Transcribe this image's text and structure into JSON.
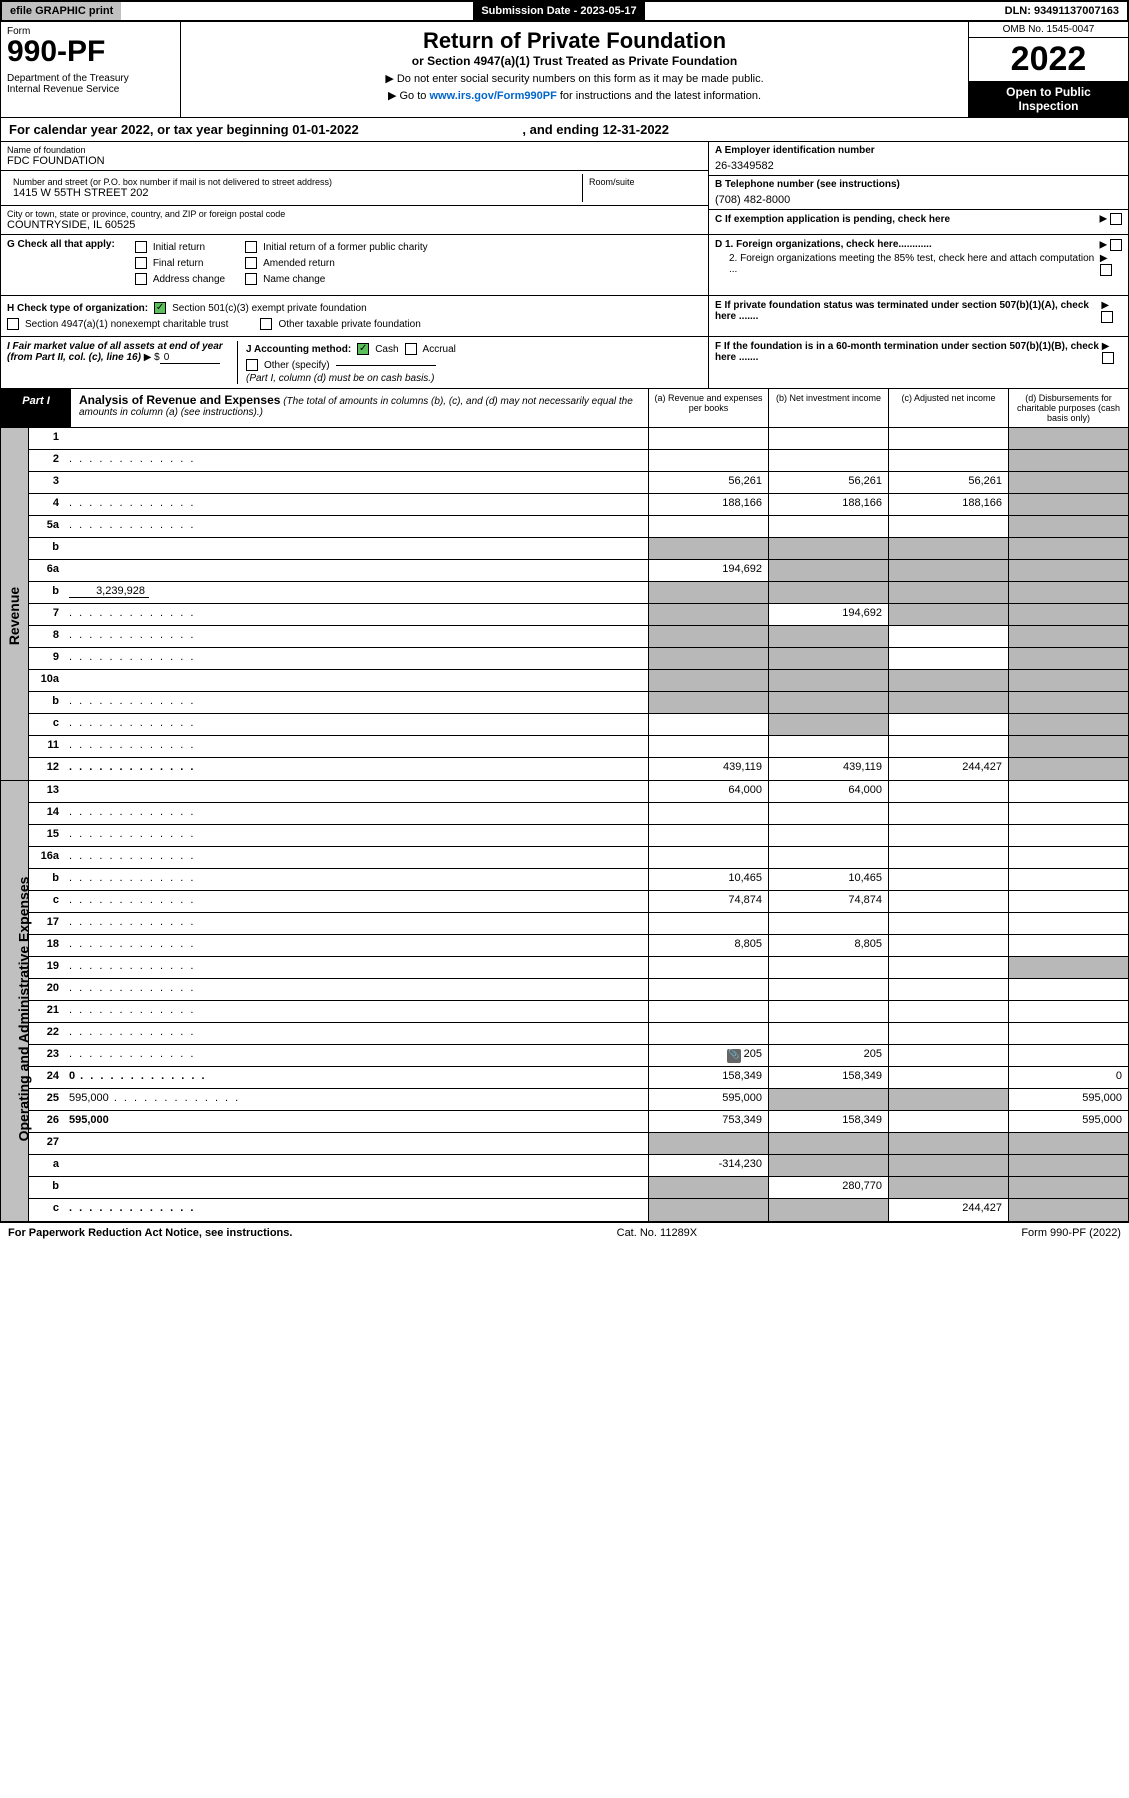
{
  "topbar": {
    "efile": "efile GRAPHIC print",
    "submission": "Submission Date - 2023-05-17",
    "dln": "DLN: 93491137007163"
  },
  "header": {
    "form_label": "Form",
    "form_no": "990-PF",
    "dept": "Department of the Treasury\nInternal Revenue Service",
    "title": "Return of Private Foundation",
    "subtitle": "or Section 4947(a)(1) Trust Treated as Private Foundation",
    "instr1": "▶ Do not enter social security numbers on this form as it may be made public.",
    "instr2_pre": "▶ Go to ",
    "instr2_link": "www.irs.gov/Form990PF",
    "instr2_post": " for instructions and the latest information.",
    "omb": "OMB No. 1545-0047",
    "year": "2022",
    "open": "Open to Public\nInspection"
  },
  "calyear": {
    "text": "For calendar year 2022, or tax year beginning 01-01-2022",
    "ending": ", and ending 12-31-2022"
  },
  "entity": {
    "name_label": "Name of foundation",
    "name": "FDC FOUNDATION",
    "addr_label": "Number and street (or P.O. box number if mail is not delivered to street address)",
    "addr": "1415 W 55TH STREET 202",
    "room_label": "Room/suite",
    "city_label": "City or town, state or province, country, and ZIP or foreign postal code",
    "city": "COUNTRYSIDE, IL  60525",
    "ein_label": "A Employer identification number",
    "ein": "26-3349582",
    "phone_label": "B Telephone number (see instructions)",
    "phone": "(708) 482-8000",
    "c_label": "C If exemption application is pending, check here",
    "d1": "D 1. Foreign organizations, check here............",
    "d2": "2. Foreign organizations meeting the 85% test, check here and attach computation ...",
    "e_label": "E  If private foundation status was terminated under section 507(b)(1)(A), check here .......",
    "f_label": "F  If the foundation is in a 60-month termination under section 507(b)(1)(B), check here ......."
  },
  "g": {
    "label": "G Check all that apply:",
    "opts": [
      "Initial return",
      "Final return",
      "Address change",
      "Initial return of a former public charity",
      "Amended return",
      "Name change"
    ]
  },
  "h": {
    "label": "H Check type of organization:",
    "opt1": "Section 501(c)(3) exempt private foundation",
    "opt2": "Section 4947(a)(1) nonexempt charitable trust",
    "opt3": "Other taxable private foundation"
  },
  "i": {
    "label": "I Fair market value of all assets at end of year (from Part II, col. (c), line 16)",
    "prefix": "▶ $",
    "val": "0"
  },
  "j": {
    "label": "J Accounting method:",
    "cash": "Cash",
    "accrual": "Accrual",
    "other": "Other (specify)",
    "note": "(Part I, column (d) must be on cash basis.)"
  },
  "part1": {
    "label": "Part I",
    "title": "Analysis of Revenue and Expenses",
    "note": "(The total of amounts in columns (b), (c), and (d) may not necessarily equal the amounts in column (a) (see instructions).)",
    "cols": {
      "a": "(a)   Revenue and expenses per books",
      "b": "(b)   Net investment income",
      "c": "(c)   Adjusted net income",
      "d": "(d)   Disbursements for charitable purposes (cash basis only)"
    }
  },
  "sides": {
    "revenue": "Revenue",
    "opex": "Operating and Administrative Expenses"
  },
  "rows": [
    {
      "n": "1",
      "d": "",
      "a": "",
      "b": "",
      "c": "",
      "g": [
        "d"
      ]
    },
    {
      "n": "2",
      "d": "",
      "dots": true,
      "a": "",
      "b": "",
      "c": "",
      "g": [
        "d"
      ]
    },
    {
      "n": "3",
      "d": "",
      "a": "56,261",
      "b": "56,261",
      "c": "56,261",
      "g": [
        "d"
      ]
    },
    {
      "n": "4",
      "d": "",
      "dots": true,
      "a": "188,166",
      "b": "188,166",
      "c": "188,166",
      "g": [
        "d"
      ]
    },
    {
      "n": "5a",
      "d": "",
      "dots": true,
      "a": "",
      "b": "",
      "c": "",
      "g": [
        "d"
      ]
    },
    {
      "n": "b",
      "d": "",
      "a": "",
      "b": "",
      "c": "",
      "g": [
        "a",
        "b",
        "c",
        "d"
      ],
      "inline": true
    },
    {
      "n": "6a",
      "d": "",
      "a": "194,692",
      "b": "",
      "c": "",
      "g": [
        "b",
        "c",
        "d"
      ]
    },
    {
      "n": "b",
      "d": "",
      "inline_val": "3,239,928",
      "a": "",
      "b": "",
      "c": "",
      "g": [
        "a",
        "b",
        "c",
        "d"
      ]
    },
    {
      "n": "7",
      "d": "",
      "dots": true,
      "a": "",
      "b": "194,692",
      "c": "",
      "g": [
        "a",
        "c",
        "d"
      ]
    },
    {
      "n": "8",
      "d": "",
      "dots": true,
      "a": "",
      "b": "",
      "c": "",
      "g": [
        "a",
        "b",
        "d"
      ]
    },
    {
      "n": "9",
      "d": "",
      "dots": true,
      "a": "",
      "b": "",
      "c": "",
      "g": [
        "a",
        "b",
        "d"
      ]
    },
    {
      "n": "10a",
      "d": "",
      "a": "",
      "b": "",
      "c": "",
      "g": [
        "a",
        "b",
        "c",
        "d"
      ],
      "inline": true
    },
    {
      "n": "b",
      "d": "",
      "dots": true,
      "a": "",
      "b": "",
      "c": "",
      "g": [
        "a",
        "b",
        "c",
        "d"
      ],
      "inline": true
    },
    {
      "n": "c",
      "d": "",
      "dots": true,
      "a": "",
      "b": "",
      "c": "",
      "g": [
        "b",
        "d"
      ]
    },
    {
      "n": "11",
      "d": "",
      "dots": true,
      "a": "",
      "b": "",
      "c": "",
      "g": [
        "d"
      ]
    },
    {
      "n": "12",
      "d": "",
      "dots": true,
      "bold": true,
      "a": "439,119",
      "b": "439,119",
      "c": "244,427",
      "g": [
        "d"
      ]
    },
    {
      "n": "13",
      "d": "",
      "a": "64,000",
      "b": "64,000",
      "c": ""
    },
    {
      "n": "14",
      "d": "",
      "dots": true,
      "a": "",
      "b": "",
      "c": ""
    },
    {
      "n": "15",
      "d": "",
      "dots": true,
      "a": "",
      "b": "",
      "c": ""
    },
    {
      "n": "16a",
      "d": "",
      "dots": true,
      "a": "",
      "b": "",
      "c": ""
    },
    {
      "n": "b",
      "d": "",
      "dots": true,
      "a": "10,465",
      "b": "10,465",
      "c": ""
    },
    {
      "n": "c",
      "d": "",
      "dots": true,
      "a": "74,874",
      "b": "74,874",
      "c": ""
    },
    {
      "n": "17",
      "d": "",
      "dots": true,
      "a": "",
      "b": "",
      "c": ""
    },
    {
      "n": "18",
      "d": "",
      "dots": true,
      "a": "8,805",
      "b": "8,805",
      "c": ""
    },
    {
      "n": "19",
      "d": "",
      "dots": true,
      "a": "",
      "b": "",
      "c": "",
      "g": [
        "d"
      ]
    },
    {
      "n": "20",
      "d": "",
      "dots": true,
      "a": "",
      "b": "",
      "c": ""
    },
    {
      "n": "21",
      "d": "",
      "dots": true,
      "a": "",
      "b": "",
      "c": ""
    },
    {
      "n": "22",
      "d": "",
      "dots": true,
      "a": "",
      "b": "",
      "c": ""
    },
    {
      "n": "23",
      "d": "",
      "dots": true,
      "icon": true,
      "a": "205",
      "b": "205",
      "c": ""
    },
    {
      "n": "24",
      "d": "0",
      "dots": true,
      "bold": true,
      "a": "158,349",
      "b": "158,349",
      "c": ""
    },
    {
      "n": "25",
      "d": "595,000",
      "dots": true,
      "a": "595,000",
      "b": "",
      "c": "",
      "g": [
        "b",
        "c"
      ]
    },
    {
      "n": "26",
      "d": "595,000",
      "bold": true,
      "a": "753,349",
      "b": "158,349",
      "c": ""
    },
    {
      "n": "27",
      "d": "",
      "bold": true,
      "a": "",
      "b": "",
      "c": "",
      "g": [
        "a",
        "b",
        "c",
        "d"
      ]
    },
    {
      "n": "a",
      "d": "",
      "bold": true,
      "a": "-314,230",
      "b": "",
      "c": "",
      "g": [
        "b",
        "c",
        "d"
      ]
    },
    {
      "n": "b",
      "d": "",
      "bold": true,
      "a": "",
      "b": "280,770",
      "c": "",
      "g": [
        "a",
        "c",
        "d"
      ]
    },
    {
      "n": "c",
      "d": "",
      "dots": true,
      "bold": true,
      "a": "",
      "b": "",
      "c": "244,427",
      "g": [
        "a",
        "b",
        "d"
      ]
    }
  ],
  "footer": {
    "left": "For Paperwork Reduction Act Notice, see instructions.",
    "center": "Cat. No. 11289X",
    "right": "Form 990-PF (2022)"
  },
  "colors": {
    "grey": "#b8b8b8",
    "darkgrey": "#c0c0c0",
    "green": "#5bbf5b",
    "link": "#0066cc"
  }
}
